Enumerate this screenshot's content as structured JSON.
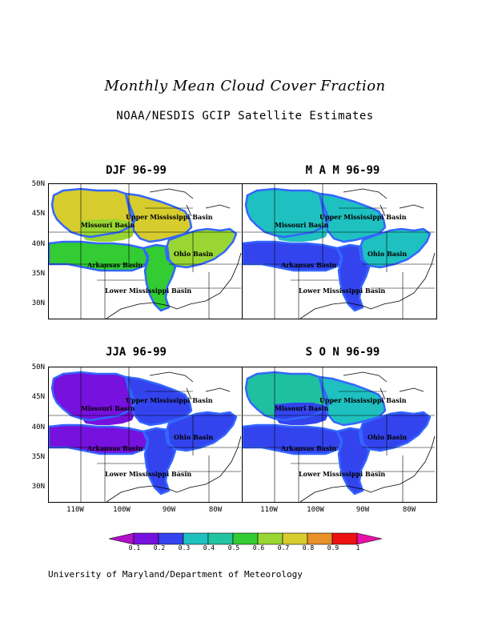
{
  "title": "Monthly Mean Cloud Cover Fraction",
  "subtitle": "NOAA/NESDIS GCIP Satellite Estimates",
  "footer": "University of Maryland/Department of Meteorology",
  "axes": {
    "lat_labels": [
      "50N",
      "45N",
      "40N",
      "35N",
      "30N"
    ],
    "lon_labels": [
      "110W",
      "100W",
      "90W",
      "80W"
    ]
  },
  "basin_labels": {
    "upper": "Upper Mississippi Basin",
    "missouri": "Missouri Basin",
    "ohio": "Ohio Basin",
    "arkansas": "Arkansas Basin",
    "lower": "Lower Mississippi Basin"
  },
  "colors": {
    "basin_outline": "#3366ff",
    "map_lines": "#000000"
  },
  "panels": [
    {
      "title": "DJF 96-99",
      "regions": {
        "missouri": "#d6cc2e",
        "missouri_south": "#99d633",
        "upper": "#d6cc2e",
        "ohio": "#99d633",
        "arkansas": "#33cc33",
        "lower": "#33cc33"
      }
    },
    {
      "title": "M A M 96-99",
      "regions": {
        "missouri": "#1fc0c0",
        "missouri_south": "#1fc0c0",
        "upper": "#1fc0c0",
        "ohio": "#1fc0c0",
        "arkansas": "#3344ee",
        "lower": "#3344ee"
      }
    },
    {
      "title": "JJA 96-99",
      "regions": {
        "missouri": "#7711dd",
        "missouri_south": "#7711dd",
        "upper": "#3344ee",
        "ohio": "#3344ee",
        "arkansas": "#7711dd",
        "lower": "#3344ee"
      }
    },
    {
      "title": "S O N 96-99",
      "regions": {
        "missouri": "#1fc0a0",
        "missouri_south": "#3344ee",
        "upper": "#1fc0c0",
        "ohio": "#3344ee",
        "arkansas": "#3344ee",
        "lower": "#3344ee"
      }
    }
  ],
  "colorbar": {
    "labels": [
      "0.1",
      "0.2",
      "0.3",
      "0.4",
      "0.5",
      "0.6",
      "0.7",
      "0.8",
      "0.9",
      "1"
    ],
    "colors": [
      "#b011c8",
      "#7711dd",
      "#3344ee",
      "#1fc0c0",
      "#22c4a0",
      "#33cc33",
      "#99d633",
      "#d6cc2e",
      "#e8902a",
      "#ee1111",
      "#e811a8"
    ]
  }
}
